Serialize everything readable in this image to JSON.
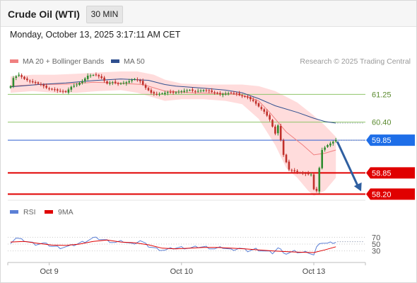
{
  "header": {
    "title": "Crude Oil (WTI)",
    "timeframe": "30 MIN"
  },
  "datetime": "Monday, October 13, 2025 3:17:11 AM CET",
  "credit": "Research © 2025 Trading Central",
  "colors": {
    "ma20": "#f08080",
    "ma50": "#2f4f8f",
    "band": "#ffd6d6",
    "bull": "#2e8b2e",
    "bear": "#c0302b",
    "resistance": "#8fc46a",
    "pivot": "#2f5fd0",
    "support": "#e00000",
    "current_tag": "#1e6ee8",
    "arrow": "#2f5fa0",
    "rsi": "#5b7fd6",
    "rsi_ma": "#e00000"
  },
  "chart_data": [
    {
      "type": "candlestick",
      "legend": [
        {
          "label": "MA 20 + Bollinger Bands",
          "color": "#f08080"
        },
        {
          "label": "MA 50",
          "color": "#2f4f8f"
        }
      ],
      "ylim": [
        58.1,
        61.95
      ],
      "x_labels": [
        {
          "label": "Oct 9",
          "bar": 14
        },
        {
          "label": "Oct 10",
          "bar": 62
        },
        {
          "label": "Oct 13",
          "bar": 110
        }
      ],
      "levels": [
        {
          "label": "61.25",
          "value": 61.25,
          "kind": "resistance"
        },
        {
          "label": "60.40",
          "value": 60.4,
          "kind": "resistance"
        },
        {
          "label": "59.85",
          "value": 59.85,
          "kind": "pivot"
        },
        {
          "label": "58.85",
          "value": 58.85,
          "kind": "support"
        },
        {
          "label": "58.20",
          "value": 58.2,
          "kind": "support"
        }
      ],
      "forecast": {
        "from": 59.85,
        "to": 58.2
      },
      "anchors": [
        [
          0,
          61.5
        ],
        [
          1,
          61.75
        ],
        [
          3,
          61.85
        ],
        [
          5,
          61.72
        ],
        [
          8,
          61.62
        ],
        [
          11,
          61.55
        ],
        [
          13,
          61.45
        ],
        [
          15,
          61.4
        ],
        [
          18,
          61.35
        ],
        [
          20,
          61.32
        ],
        [
          22,
          61.48
        ],
        [
          24,
          61.55
        ],
        [
          26,
          61.65
        ],
        [
          28,
          61.82
        ],
        [
          31,
          61.85
        ],
        [
          33,
          61.75
        ],
        [
          35,
          61.58
        ],
        [
          37,
          61.62
        ],
        [
          39,
          61.57
        ],
        [
          42,
          61.62
        ],
        [
          45,
          61.72
        ],
        [
          47,
          61.65
        ],
        [
          49,
          61.45
        ],
        [
          51,
          61.3
        ],
        [
          53,
          61.25
        ],
        [
          55,
          61.28
        ],
        [
          57,
          61.32
        ],
        [
          59,
          61.3
        ],
        [
          61,
          61.33
        ],
        [
          63,
          61.36
        ],
        [
          65,
          61.38
        ],
        [
          67,
          61.34
        ],
        [
          70,
          61.38
        ],
        [
          72,
          61.35
        ],
        [
          74,
          61.3
        ],
        [
          76,
          61.25
        ],
        [
          78,
          61.27
        ],
        [
          80,
          61.3
        ],
        [
          82,
          61.27
        ],
        [
          84,
          61.2
        ],
        [
          86,
          61.15
        ],
        [
          88,
          61.05
        ],
        [
          90,
          60.88
        ],
        [
          92,
          60.72
        ],
        [
          94,
          60.48
        ],
        [
          96,
          60.05
        ],
        [
          97,
          60.3
        ],
        [
          99,
          59.4
        ],
        [
          101,
          58.95
        ],
        [
          103,
          58.9
        ],
        [
          105,
          58.85
        ],
        [
          107,
          58.82
        ],
        [
          109,
          58.8
        ],
        [
          110,
          58.35
        ],
        [
          111,
          58.3
        ],
        [
          112,
          59.0
        ],
        [
          113,
          59.55
        ],
        [
          115,
          59.7
        ],
        [
          117,
          59.8
        ],
        [
          118,
          59.85
        ]
      ],
      "ma50": [
        [
          0,
          61.48
        ],
        [
          10,
          61.55
        ],
        [
          20,
          61.6
        ],
        [
          30,
          61.67
        ],
        [
          40,
          61.72
        ],
        [
          50,
          61.68
        ],
        [
          56,
          61.55
        ],
        [
          60,
          61.5
        ],
        [
          70,
          61.44
        ],
        [
          78,
          61.38
        ],
        [
          84,
          61.3
        ],
        [
          90,
          61.12
        ],
        [
          96,
          60.9
        ],
        [
          104,
          60.7
        ],
        [
          110,
          60.52
        ],
        [
          114,
          60.42
        ],
        [
          118,
          60.37
        ]
      ],
      "ma20": [
        [
          0,
          61.5
        ],
        [
          10,
          61.55
        ],
        [
          20,
          61.56
        ],
        [
          30,
          61.62
        ],
        [
          38,
          61.6
        ],
        [
          48,
          61.55
        ],
        [
          56,
          61.35
        ],
        [
          66,
          61.3
        ],
        [
          76,
          61.28
        ],
        [
          82,
          61.25
        ],
        [
          86,
          61.18
        ],
        [
          90,
          61.05
        ],
        [
          94,
          60.7
        ],
        [
          100,
          60.1
        ],
        [
          106,
          59.7
        ],
        [
          110,
          59.4
        ],
        [
          114,
          59.45
        ],
        [
          118,
          59.55
        ]
      ],
      "band_upper": [
        [
          0,
          61.8
        ],
        [
          8,
          61.85
        ],
        [
          16,
          61.85
        ],
        [
          24,
          61.88
        ],
        [
          32,
          61.92
        ],
        [
          40,
          61.95
        ],
        [
          46,
          61.95
        ],
        [
          52,
          61.85
        ],
        [
          56,
          61.7
        ],
        [
          62,
          61.58
        ],
        [
          70,
          61.55
        ],
        [
          78,
          61.55
        ],
        [
          84,
          61.55
        ],
        [
          90,
          61.5
        ],
        [
          96,
          61.35
        ],
        [
          104,
          61.0
        ],
        [
          110,
          60.6
        ],
        [
          114,
          60.3
        ],
        [
          118,
          59.95
        ]
      ],
      "band_lower": [
        [
          0,
          61.3
        ],
        [
          8,
          61.35
        ],
        [
          16,
          61.3
        ],
        [
          24,
          61.3
        ],
        [
          32,
          61.35
        ],
        [
          40,
          61.38
        ],
        [
          46,
          61.3
        ],
        [
          52,
          61.15
        ],
        [
          56,
          61.05
        ],
        [
          62,
          61.1
        ],
        [
          70,
          61.1
        ],
        [
          78,
          61.05
        ],
        [
          84,
          60.95
        ],
        [
          90,
          60.5
        ],
        [
          96,
          59.7
        ],
        [
          100,
          59.0
        ],
        [
          104,
          58.7
        ],
        [
          108,
          58.3
        ],
        [
          110,
          58.15
        ],
        [
          114,
          58.3
        ],
        [
          118,
          58.7
        ]
      ],
      "bar_count": 119
    },
    {
      "type": "line",
      "legend": [
        {
          "label": "RSI",
          "color": "#5b7fd6"
        },
        {
          "label": "9MA",
          "color": "#e00000"
        }
      ],
      "ylim": [
        0,
        100
      ],
      "levels": [
        {
          "label": "70",
          "value": 70
        },
        {
          "label": "50",
          "value": 50
        },
        {
          "label": "30",
          "value": 30
        }
      ],
      "rsi": [
        [
          0,
          55
        ],
        [
          2,
          68
        ],
        [
          4,
          62
        ],
        [
          6,
          58
        ],
        [
          9,
          50
        ],
        [
          12,
          52
        ],
        [
          15,
          44
        ],
        [
          18,
          40
        ],
        [
          21,
          43
        ],
        [
          24,
          50
        ],
        [
          27,
          58
        ],
        [
          30,
          68
        ],
        [
          32,
          66
        ],
        [
          35,
          60
        ],
        [
          38,
          55
        ],
        [
          41,
          58
        ],
        [
          44,
          50
        ],
        [
          47,
          60
        ],
        [
          50,
          44
        ],
        [
          53,
          36
        ],
        [
          56,
          32
        ],
        [
          59,
          38
        ],
        [
          62,
          40
        ],
        [
          65,
          38
        ],
        [
          68,
          42
        ],
        [
          71,
          41
        ],
        [
          74,
          36
        ],
        [
          77,
          40
        ],
        [
          80,
          33
        ],
        [
          83,
          38
        ],
        [
          86,
          30
        ],
        [
          89,
          35
        ],
        [
          92,
          30
        ],
        [
          95,
          24
        ],
        [
          97,
          38
        ],
        [
          100,
          22
        ],
        [
          103,
          28
        ],
        [
          106,
          25
        ],
        [
          108,
          27
        ],
        [
          110,
          18
        ],
        [
          111,
          40
        ],
        [
          113,
          55
        ],
        [
          115,
          52
        ],
        [
          118,
          57
        ]
      ],
      "rsi_ma": [
        [
          0,
          56
        ],
        [
          5,
          58
        ],
        [
          10,
          52
        ],
        [
          15,
          47
        ],
        [
          20,
          46
        ],
        [
          25,
          50
        ],
        [
          30,
          58
        ],
        [
          35,
          62
        ],
        [
          40,
          56
        ],
        [
          45,
          54
        ],
        [
          50,
          48
        ],
        [
          55,
          38
        ],
        [
          60,
          36
        ],
        [
          65,
          38
        ],
        [
          70,
          40
        ],
        [
          75,
          40
        ],
        [
          80,
          38
        ],
        [
          85,
          36
        ],
        [
          90,
          33
        ],
        [
          95,
          30
        ],
        [
          100,
          28
        ],
        [
          105,
          26
        ],
        [
          110,
          25
        ],
        [
          114,
          33
        ],
        [
          118,
          42
        ]
      ]
    }
  ]
}
